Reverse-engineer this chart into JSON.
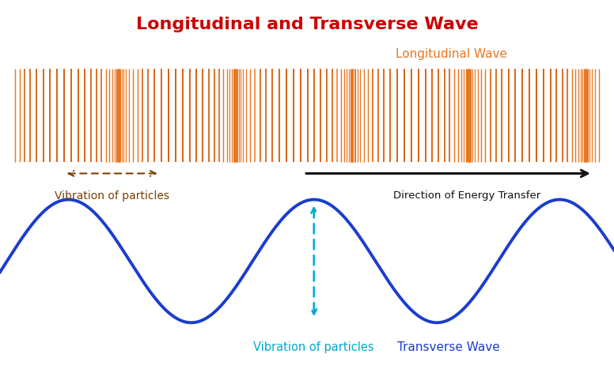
{
  "title": "Longitudinal and Transverse Wave",
  "title_color": "#cc0000",
  "title_fontsize": 16,
  "bg_color": "#ffffff",
  "long_wave_label": "Longitudinal Wave",
  "long_wave_label_color": "#e87722",
  "vib_particles_top_label": "Vibration of particles",
  "vib_particles_top_color": "#7b3f00",
  "energy_dir_label": "Direction of Energy Transfer",
  "energy_dir_color": "#111111",
  "vib_particles_bot_label": "Vibration of particles",
  "vib_particles_bot_color": "#00aacc",
  "transverse_wave_label": "Transverse Wave",
  "transverse_wave_label_color": "#1a3dcc",
  "bar_color": "#e87722",
  "bar_color_dark": "#d45500",
  "sine_color": "#1a3dcc",
  "sine_linewidth": 2.8,
  "cyan_arrow_color": "#00aacc",
  "n_bars": 160,
  "n_cycles_long": 5,
  "wave_cycles": 2.5
}
